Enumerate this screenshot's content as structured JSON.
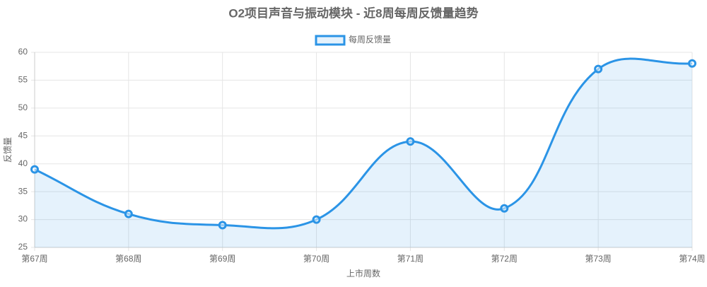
{
  "chart_data": {
    "type": "line",
    "title": "O2项目声音与振动模块 - 近8周每周反馈量趋势",
    "x_label": "上市周数",
    "y_label": "反馈量",
    "categories": [
      "第67周",
      "第68周",
      "第69周",
      "第70周",
      "第71周",
      "第72周",
      "第73周",
      "第74周"
    ],
    "series": [
      {
        "name": "每周反馈量",
        "color": "#2b94e6",
        "values": [
          39,
          31,
          29,
          30,
          44,
          32,
          57,
          58
        ]
      }
    ],
    "ylim": [
      25,
      60
    ],
    "yticks": [
      25,
      30,
      35,
      40,
      45,
      50,
      55,
      60
    ],
    "grid": true,
    "fill": true,
    "legend": "top"
  }
}
